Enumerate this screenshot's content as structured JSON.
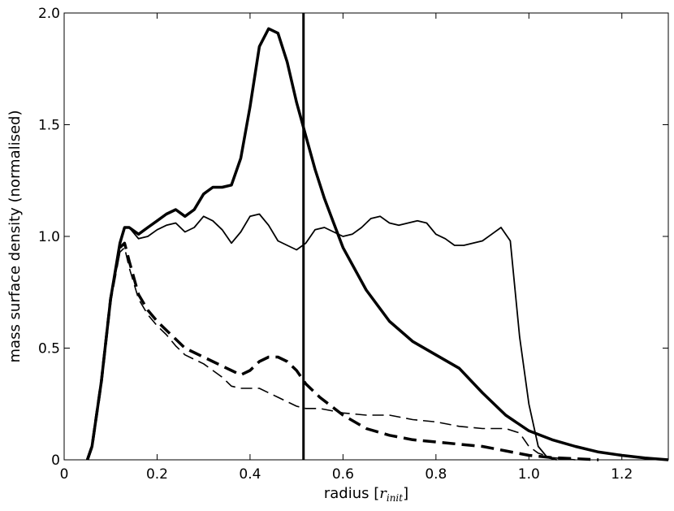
{
  "chart_data": {
    "type": "line",
    "xlabel": "radius",
    "xlabel_unit": {
      "open": "[",
      "r": "r",
      "sub": "init",
      "close": "]"
    },
    "ylabel": "mass surface density (normalised)",
    "xlim": [
      0,
      1.3
    ],
    "ylim": [
      0,
      2.0
    ],
    "xticks": [
      0,
      0.2,
      0.4,
      0.6,
      0.8,
      1.0,
      1.2
    ],
    "xtick_labels": [
      "0",
      "0.2",
      "0.4",
      "0.6",
      "0.8",
      "1.0",
      "1.2"
    ],
    "yticks": [
      0,
      0.5,
      1.0,
      1.5,
      2.0
    ],
    "ytick_labels": [
      "0",
      "0.5",
      "1.0",
      "1.5",
      "2.0"
    ],
    "grid": false,
    "vline": 0.515,
    "series": [
      {
        "style": "thick-solid",
        "x": [
          0.05,
          0.06,
          0.08,
          0.1,
          0.12,
          0.13,
          0.14,
          0.16,
          0.18,
          0.2,
          0.22,
          0.24,
          0.26,
          0.28,
          0.3,
          0.32,
          0.34,
          0.36,
          0.38,
          0.4,
          0.42,
          0.44,
          0.46,
          0.48,
          0.5,
          0.52,
          0.54,
          0.56,
          0.58,
          0.6,
          0.65,
          0.7,
          0.75,
          0.8,
          0.85,
          0.9,
          0.95,
          1.0,
          1.05,
          1.1,
          1.15,
          1.2,
          1.25,
          1.3
        ],
        "y": [
          0,
          0.06,
          0.35,
          0.72,
          0.97,
          1.04,
          1.04,
          1.01,
          1.04,
          1.07,
          1.1,
          1.12,
          1.09,
          1.12,
          1.19,
          1.22,
          1.22,
          1.23,
          1.35,
          1.58,
          1.85,
          1.93,
          1.91,
          1.78,
          1.6,
          1.45,
          1.3,
          1.17,
          1.06,
          0.95,
          0.76,
          0.62,
          0.53,
          0.47,
          0.41,
          0.3,
          0.2,
          0.13,
          0.09,
          0.06,
          0.035,
          0.02,
          0.008,
          0.0
        ]
      },
      {
        "style": "thin-solid",
        "x": [
          0.05,
          0.06,
          0.08,
          0.1,
          0.12,
          0.13,
          0.14,
          0.16,
          0.18,
          0.2,
          0.22,
          0.24,
          0.26,
          0.28,
          0.3,
          0.32,
          0.34,
          0.36,
          0.38,
          0.4,
          0.42,
          0.44,
          0.46,
          0.48,
          0.5,
          0.52,
          0.54,
          0.56,
          0.58,
          0.6,
          0.62,
          0.64,
          0.66,
          0.68,
          0.7,
          0.72,
          0.74,
          0.76,
          0.78,
          0.8,
          0.82,
          0.84,
          0.86,
          0.88,
          0.9,
          0.92,
          0.94,
          0.96,
          0.98,
          1.0,
          1.02,
          1.04,
          1.06
        ],
        "y": [
          0,
          0.06,
          0.35,
          0.72,
          0.97,
          1.04,
          1.04,
          0.99,
          1.0,
          1.03,
          1.05,
          1.06,
          1.02,
          1.04,
          1.09,
          1.07,
          1.03,
          0.97,
          1.02,
          1.09,
          1.1,
          1.05,
          0.98,
          0.96,
          0.94,
          0.97,
          1.03,
          1.04,
          1.02,
          1.0,
          1.01,
          1.04,
          1.08,
          1.09,
          1.06,
          1.05,
          1.06,
          1.07,
          1.06,
          1.01,
          0.99,
          0.96,
          0.96,
          0.97,
          0.98,
          1.01,
          1.04,
          0.98,
          0.55,
          0.25,
          0.06,
          0.01,
          0.0
        ]
      },
      {
        "style": "thick-dashed",
        "x": [
          0.05,
          0.06,
          0.08,
          0.1,
          0.12,
          0.13,
          0.14,
          0.16,
          0.18,
          0.2,
          0.22,
          0.24,
          0.26,
          0.28,
          0.3,
          0.32,
          0.34,
          0.36,
          0.38,
          0.4,
          0.42,
          0.44,
          0.46,
          0.48,
          0.5,
          0.52,
          0.55,
          0.6,
          0.65,
          0.7,
          0.75,
          0.8,
          0.85,
          0.9,
          0.95,
          1.0,
          1.05,
          1.1,
          1.15
        ],
        "y": [
          0,
          0.06,
          0.35,
          0.72,
          0.95,
          0.97,
          0.89,
          0.74,
          0.67,
          0.62,
          0.58,
          0.54,
          0.5,
          0.48,
          0.46,
          0.44,
          0.42,
          0.4,
          0.38,
          0.4,
          0.44,
          0.46,
          0.46,
          0.44,
          0.4,
          0.34,
          0.28,
          0.2,
          0.14,
          0.11,
          0.09,
          0.08,
          0.07,
          0.06,
          0.04,
          0.02,
          0.01,
          0.005,
          0.0
        ]
      },
      {
        "style": "thin-dashed",
        "x": [
          0.05,
          0.06,
          0.08,
          0.1,
          0.12,
          0.13,
          0.14,
          0.16,
          0.18,
          0.2,
          0.22,
          0.24,
          0.26,
          0.28,
          0.3,
          0.32,
          0.34,
          0.36,
          0.38,
          0.4,
          0.42,
          0.44,
          0.46,
          0.48,
          0.5,
          0.52,
          0.55,
          0.6,
          0.65,
          0.7,
          0.75,
          0.8,
          0.85,
          0.9,
          0.95,
          0.98,
          1.0,
          1.02,
          1.05,
          1.1
        ],
        "y": [
          0,
          0.06,
          0.35,
          0.72,
          0.93,
          0.95,
          0.86,
          0.72,
          0.65,
          0.6,
          0.56,
          0.51,
          0.47,
          0.45,
          0.43,
          0.4,
          0.37,
          0.33,
          0.32,
          0.32,
          0.32,
          0.3,
          0.28,
          0.26,
          0.24,
          0.23,
          0.23,
          0.21,
          0.2,
          0.2,
          0.18,
          0.17,
          0.15,
          0.14,
          0.14,
          0.12,
          0.06,
          0.03,
          0.01,
          0.0
        ]
      }
    ]
  }
}
